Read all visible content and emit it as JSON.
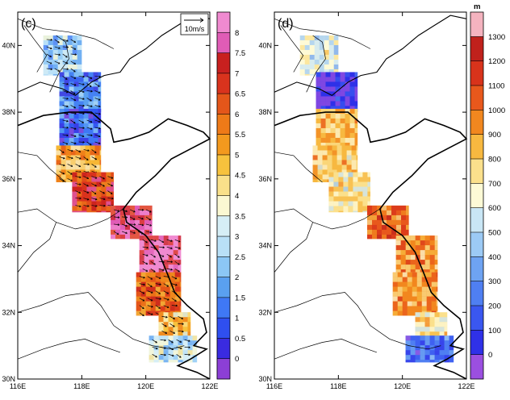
{
  "chart_data": [
    {
      "type": "heatmap",
      "panel_label": "(c)",
      "reference_vector": "10m/s",
      "x_ticks": [
        "116E",
        "118E",
        "120E",
        "122E"
      ],
      "y_ticks": [
        "30N",
        "32N",
        "34N",
        "36N",
        "38N",
        "40N"
      ],
      "xlim": [
        116,
        122
      ],
      "ylim": [
        30,
        41
      ],
      "colorbar": {
        "labels": [
          "0",
          "0.5",
          "1",
          "1.5",
          "2",
          "2.5",
          "3",
          "3.5",
          "4",
          "4.5",
          "5",
          "5.5",
          "6",
          "6.5",
          "7",
          "7.5",
          "8"
        ],
        "colors": [
          "#8c3fd6",
          "#3a2be0",
          "#2f4ff0",
          "#3f78f5",
          "#5aa0f0",
          "#8cc7f5",
          "#b9e0f7",
          "#d6eef6",
          "#fbf8d2",
          "#f9e08a",
          "#f7c23d",
          "#f3991e",
          "#ee7a18",
          "#e4561a",
          "#d9331d",
          "#c8201f",
          "#e05cb6",
          "#f08ad0"
        ]
      },
      "tiles": [
        {
          "lon": [
            116.8,
            118.0
          ],
          "lat": [
            39.1,
            40.3
          ],
          "mean": 2.5
        },
        {
          "lon": [
            117.3,
            118.6
          ],
          "lat": [
            38.0,
            39.2
          ],
          "mean": 1.5
        },
        {
          "lon": [
            117.3,
            118.6
          ],
          "lat": [
            36.9,
            38.1
          ],
          "mean": 1.0
        },
        {
          "lon": [
            117.2,
            118.6
          ],
          "lat": [
            35.9,
            37.0
          ],
          "mean": 5.0
        },
        {
          "lon": [
            117.7,
            119.0
          ],
          "lat": [
            35.0,
            36.2
          ],
          "mean": 6.5
        },
        {
          "lon": [
            118.9,
            120.2
          ],
          "lat": [
            34.2,
            35.2
          ],
          "mean": 7.5
        },
        {
          "lon": [
            119.8,
            121.1
          ],
          "lat": [
            33.2,
            34.3
          ],
          "mean": 8.0
        },
        {
          "lon": [
            119.7,
            121.1
          ],
          "lat": [
            31.9,
            33.2
          ],
          "mean": 6.0
        },
        {
          "lon": [
            120.4,
            121.4
          ],
          "lat": [
            31.2,
            32.0
          ],
          "mean": 4.5
        },
        {
          "lon": [
            120.1,
            121.6
          ],
          "lat": [
            30.5,
            31.3
          ],
          "mean": 3.0
        }
      ]
    },
    {
      "type": "heatmap",
      "panel_label": "(d)",
      "unit": "m",
      "x_ticks": [
        "116E",
        "118E",
        "120E",
        "122E"
      ],
      "y_ticks": [
        "30N",
        "32N",
        "34N",
        "36N",
        "38N",
        "40N"
      ],
      "xlim": [
        116,
        122
      ],
      "ylim": [
        30,
        41
      ],
      "colorbar": {
        "labels": [
          "0",
          "100",
          "200",
          "300",
          "400",
          "500",
          "600",
          "700",
          "800",
          "900",
          "1000",
          "1100",
          "1200",
          "1300"
        ],
        "colors": [
          "#9b4fe0",
          "#2f31e8",
          "#3a57f0",
          "#4f7ff2",
          "#6ea3f2",
          "#9ccaf5",
          "#c9e6f5",
          "#fdfad6",
          "#fbe08c",
          "#f7b840",
          "#f1871f",
          "#e8581c",
          "#d8331b",
          "#c0211c",
          "#f4b3bf"
        ]
      },
      "tiles": [
        {
          "lon": [
            116.8,
            118.0
          ],
          "lat": [
            39.1,
            40.3
          ],
          "mean": 600
        },
        {
          "lon": [
            117.3,
            118.6
          ],
          "lat": [
            38.0,
            39.2
          ],
          "mean": 0
        },
        {
          "lon": [
            117.3,
            118.6
          ],
          "lat": [
            36.9,
            38.1
          ],
          "mean": 800
        },
        {
          "lon": [
            117.2,
            118.6
          ],
          "lat": [
            35.9,
            37.0
          ],
          "mean": 800
        },
        {
          "lon": [
            117.7,
            119.0
          ],
          "lat": [
            35.0,
            36.2
          ],
          "mean": 700
        },
        {
          "lon": [
            118.9,
            120.2
          ],
          "lat": [
            34.2,
            35.2
          ],
          "mean": 1000
        },
        {
          "lon": [
            119.8,
            121.1
          ],
          "lat": [
            33.2,
            34.3
          ],
          "mean": 900
        },
        {
          "lon": [
            119.7,
            121.1
          ],
          "lat": [
            31.9,
            33.2
          ],
          "mean": 900
        },
        {
          "lon": [
            120.4,
            121.4
          ],
          "lat": [
            31.2,
            32.0
          ],
          "mean": 700
        },
        {
          "lon": [
            120.1,
            121.6
          ],
          "lat": [
            30.5,
            31.3
          ],
          "mean": 200
        }
      ]
    }
  ]
}
